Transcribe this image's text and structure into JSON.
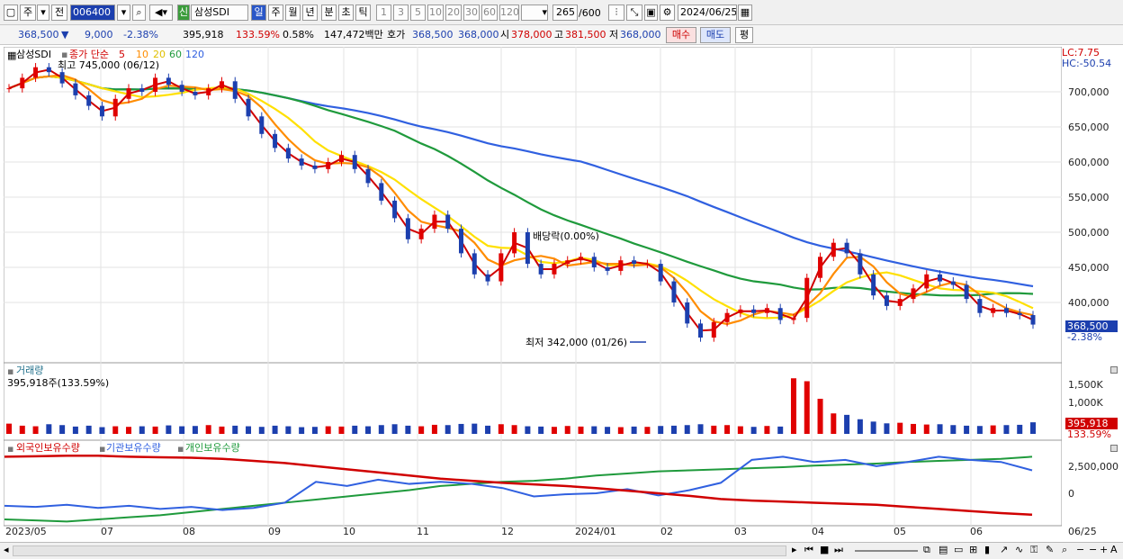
{
  "toolbar": {
    "tab_type": "주",
    "tab_prev": "전",
    "code": "006400",
    "name": "삼성SDI",
    "name_badge": "신",
    "periods": [
      "일",
      "주",
      "월",
      "년",
      "분",
      "초",
      "틱"
    ],
    "intervals": [
      "1",
      "3",
      "5",
      "10",
      "20",
      "30",
      "60",
      "120"
    ],
    "count": "265",
    "count_max": "/600",
    "date": "2024/06/25"
  },
  "quote": {
    "price": "368,500",
    "arrow": "▼",
    "change": "9,000",
    "change_pct": "-2.38%",
    "volume": "395,918",
    "volume_ratio": "133.59%",
    "turnover_pct": "0.58%",
    "amount": "147,472백만",
    "ask_label": "호가",
    "ask": "368,500",
    "bid": "368,000",
    "open_label": "시",
    "open": "378,000",
    "high_label": "고",
    "high": "381,500",
    "low_label": "저",
    "low": "368,000",
    "buy_label": "매수",
    "sell_label": "매도",
    "avg_label": "평"
  },
  "price_pane": {
    "name": "삼성SDI",
    "ma_prefix": "종가 단순",
    "ma_labels": [
      "5",
      "10",
      "20",
      "60",
      "120"
    ],
    "ma_colors": [
      "#d00000",
      "#ff8c00",
      "#ffe000",
      "#1f9a3c",
      "#3060e0"
    ],
    "high_note": "최고 745,000 (06/12)",
    "low_note": "최저 342,000 (01/26)",
    "dividend_note": "배당락(0.00%)",
    "lc": "LC:7.75",
    "hc": "HC:-50.54",
    "current_tag": "368,500",
    "current_pct": "-2.38%",
    "y_ticks": [
      "700,000",
      "650,000",
      "600,000",
      "550,000",
      "500,000",
      "450,000",
      "400,000"
    ],
    "y_values": [
      700000,
      650000,
      600000,
      550000,
      500000,
      450000,
      400000
    ]
  },
  "volume_pane": {
    "title": "거래량",
    "value": "395,918주(133.59%)",
    "y_ticks": [
      "1,500K",
      "1,000K"
    ],
    "current_tag": "395,918",
    "current_pct": "133.59%"
  },
  "holder_pane": {
    "legend": [
      "외국인보유수량",
      "기관보유수량",
      "개인보유수량"
    ],
    "legend_colors": [
      "#d00000",
      "#3060e0",
      "#1f9a3c"
    ],
    "y_ticks": [
      "2,500,000",
      "0"
    ]
  },
  "x_ticks": [
    "2023/05",
    "07",
    "08",
    "09",
    "10",
    "11",
    "12",
    "2024/01",
    "02",
    "03",
    "04",
    "05",
    "06",
    "06/25"
  ],
  "chart_data": {
    "type": "candlestick",
    "closes": [
      705000,
      720000,
      735000,
      728000,
      712000,
      695000,
      680000,
      665000,
      690000,
      705000,
      700000,
      720000,
      710000,
      700000,
      695000,
      705000,
      715000,
      690000,
      665000,
      640000,
      620000,
      605000,
      595000,
      590000,
      600000,
      610000,
      590000,
      570000,
      545000,
      520000,
      490000,
      505000,
      525000,
      505000,
      470000,
      440000,
      430000,
      470000,
      500000,
      455000,
      440000,
      455000,
      460000,
      465000,
      450000,
      445000,
      460000,
      455000,
      455000,
      430000,
      400000,
      370000,
      350000,
      372000,
      385000,
      390000,
      385000,
      392000,
      375000,
      378000,
      435000,
      465000,
      485000,
      470000,
      440000,
      410000,
      395000,
      405000,
      420000,
      440000,
      430000,
      425000,
      405000,
      385000,
      392000,
      385000,
      382000,
      368500
    ],
    "volume_k": [
      350,
      280,
      260,
      330,
      300,
      250,
      280,
      230,
      260,
      240,
      260,
      250,
      290,
      260,
      270,
      300,
      250,
      280,
      260,
      240,
      280,
      260,
      230,
      240,
      260,
      250,
      280,
      260,
      300,
      330,
      280,
      260,
      310,
      300,
      340,
      350,
      280,
      330,
      300,
      260,
      250,
      240,
      270,
      250,
      260,
      240,
      230,
      250,
      240,
      270,
      280,
      300,
      330,
      280,
      300,
      260,
      240,
      270,
      250,
      1900,
      1800,
      1200,
      700,
      650,
      500,
      420,
      360,
      380,
      340,
      320,
      330,
      300,
      280,
      270,
      290,
      300,
      310,
      396
    ],
    "foreign_holding": [
      3500000,
      3550000,
      3600000,
      3600000,
      3500000,
      3450000,
      3400000,
      3300000,
      3100000,
      2900000,
      2600000,
      2300000,
      2000000,
      1700000,
      1400000,
      1200000,
      1000000,
      850000,
      700000,
      500000,
      250000,
      0,
      -250000,
      -550000,
      -700000,
      -800000,
      -900000,
      -1000000,
      -1100000,
      -1300000,
      -1500000,
      -1700000,
      -1900000,
      -2050000
    ],
    "institution_holding": [
      -1200000,
      -1300000,
      -1100000,
      -1400000,
      -1200000,
      -1500000,
      -1300000,
      -1600000,
      -1400000,
      -900000,
      1100000,
      700000,
      1300000,
      900000,
      1100000,
      900000,
      500000,
      -300000,
      -100000,
      0,
      400000,
      -200000,
      300000,
      1000000,
      3200000,
      3500000,
      3000000,
      3200000,
      2600000,
      3000000,
      3500000,
      3200000,
      3000000,
      2200000
    ],
    "individual_holding": [
      -2500000,
      -2600000,
      -2700000,
      -2500000,
      -2300000,
      -2100000,
      -1800000,
      -1500000,
      -1200000,
      -900000,
      -600000,
      -300000,
      0,
      300000,
      700000,
      900000,
      1100000,
      1200000,
      1400000,
      1700000,
      1900000,
      2100000,
      2200000,
      2300000,
      2400000,
      2500000,
      2650000,
      2750000,
      2850000,
      3000000,
      3100000,
      3200000,
      3300000,
      3500000
    ]
  }
}
